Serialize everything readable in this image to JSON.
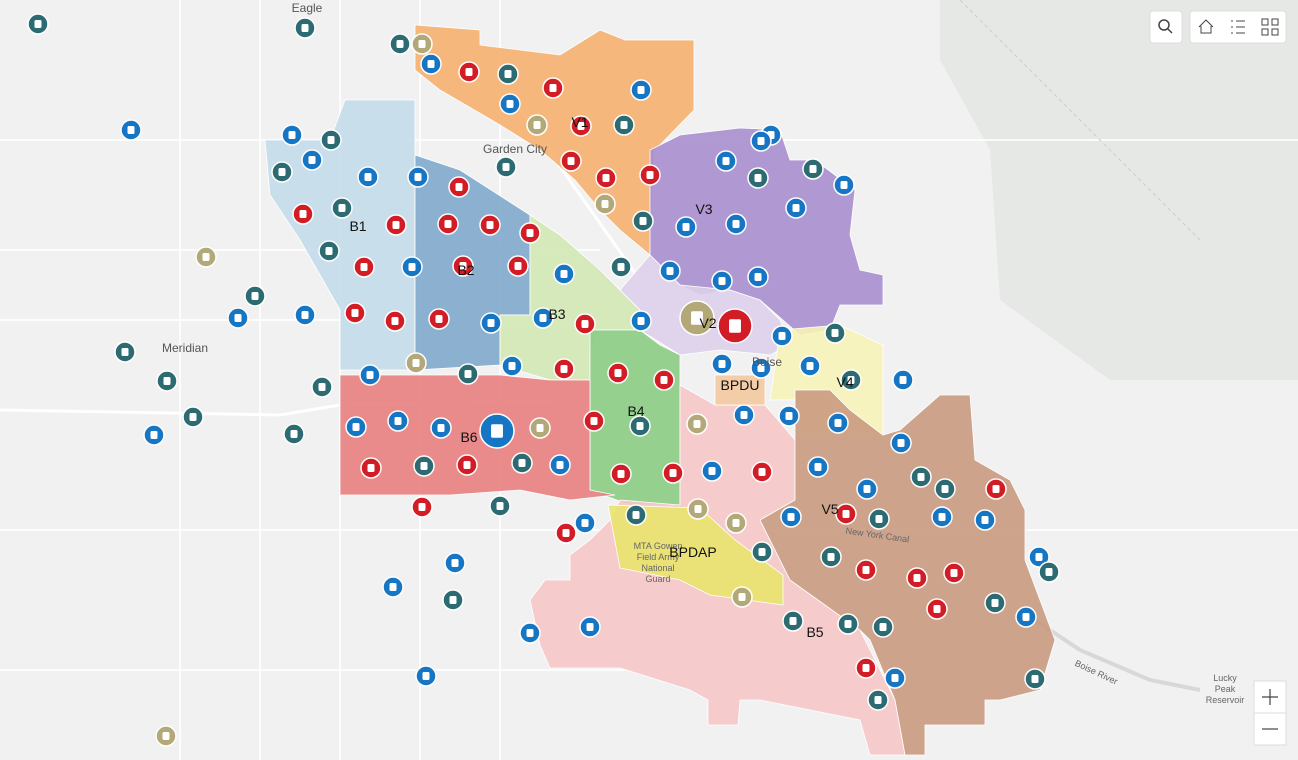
{
  "map": {
    "place_labels": [
      "Eagle",
      "Garden City",
      "Meridian",
      "Boise",
      "Boise River",
      "New York Canal"
    ],
    "lucky_peak": [
      "Lucky",
      "Peak",
      "Reservoir"
    ],
    "gowen_field": [
      "MTA Gowen",
      "Field Army",
      "National",
      "Guard"
    ],
    "district_labels": [
      "V1",
      "V3",
      "B1",
      "B2",
      "B3",
      "V2",
      "BPDU",
      "V4",
      "B4",
      "B6",
      "V5",
      "BPDAP",
      "B5"
    ]
  }
}
